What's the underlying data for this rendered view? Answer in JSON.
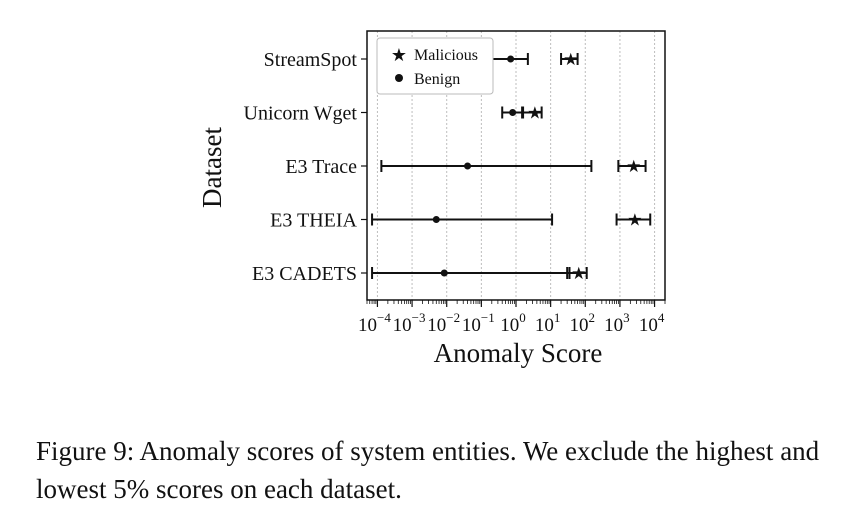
{
  "chart_data": {
    "type": "scatter",
    "subtype": "horizontal range/error-bar plot",
    "xlabel": "Anomaly Score",
    "ylabel": "Dataset",
    "x_scale": "log",
    "xlim": [
      5e-05,
      20000
    ],
    "x_tick_exponents": [
      -4,
      -3,
      -2,
      -1,
      0,
      1,
      2,
      3,
      4
    ],
    "grid": "vertical dotted gridlines at each decade",
    "legend": {
      "position": "top-left",
      "entries": [
        {
          "label": "Malicious",
          "marker": "star"
        },
        {
          "label": "Benign",
          "marker": "circle"
        }
      ]
    },
    "categories": [
      "StreamSpot",
      "Unicorn Wget",
      "E3 Trace",
      "E3 THEIA",
      "E3 CADETS"
    ],
    "series": [
      {
        "name": "Malicious",
        "marker": "star",
        "points": [
          {
            "category": "StreamSpot",
            "center": 38,
            "low": 20,
            "high": 60
          },
          {
            "category": "Unicorn Wget",
            "center": 3.5,
            "low": 1.5,
            "high": 5.5
          },
          {
            "category": "E3 Trace",
            "center": 2500,
            "low": 900,
            "high": 5500
          },
          {
            "category": "E3 THEIA",
            "center": 2700,
            "low": 800,
            "high": 7500
          },
          {
            "category": "E3 CADETS",
            "center": 65,
            "low": 30,
            "high": 110
          }
        ]
      },
      {
        "name": "Benign",
        "marker": "circle",
        "points": [
          {
            "category": "StreamSpot",
            "center": 0.7,
            "low": 0.09,
            "high": 2.2
          },
          {
            "category": "Unicorn Wget",
            "center": 0.8,
            "low": 0.4,
            "high": 1.6
          },
          {
            "category": "E3 Trace",
            "center": 0.04,
            "low": 0.00013,
            "high": 150
          },
          {
            "category": "E3 THEIA",
            "center": 0.005,
            "low": 7e-05,
            "high": 11
          },
          {
            "category": "E3 CADETS",
            "center": 0.0085,
            "low": 7e-05,
            "high": 35
          }
        ]
      }
    ]
  },
  "caption": "Figure 9: Anomaly scores of system entities. We exclude the highest and lowest 5% scores on each dataset."
}
